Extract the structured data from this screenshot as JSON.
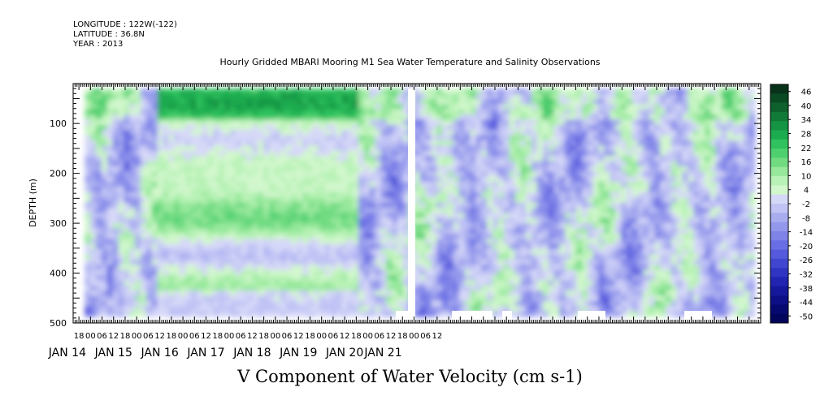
{
  "header": {
    "longitude": "LONGITUDE : 122W(-122)",
    "latitude": "LATITUDE : 36.8N",
    "year": "YEAR : 2013"
  },
  "chart_data": {
    "type": "heatmap",
    "title": "Hourly Gridded MBARI Mooring M1 Sea Water Temperature and Salinity Observations",
    "xlabel": "V Component of Water Velocity (cm s-1)",
    "ylabel": "DEPTH (m)",
    "y_range": [
      20,
      500
    ],
    "y_inverted": true,
    "y_ticks": [
      100,
      200,
      300,
      400,
      500
    ],
    "x_range_hours": [
      -9,
      348
    ],
    "x_tick_labels": [
      "18",
      "00",
      "06",
      "12",
      "18",
      "00",
      "06",
      "12",
      "18",
      "00",
      "06",
      "12",
      "18",
      "00",
      "06",
      "12",
      "18",
      "00",
      "06",
      "12",
      "18",
      "00",
      "06",
      "12",
      "18",
      "00",
      "06",
      "12",
      "18",
      "00",
      "06",
      "12"
    ],
    "x_tick_hours": [
      -6,
      0,
      6,
      12,
      18,
      24,
      30,
      36,
      42,
      48,
      54,
      60,
      66,
      72,
      78,
      84,
      90,
      96,
      102,
      108,
      114,
      120,
      126,
      132,
      138,
      144,
      150,
      156,
      162,
      168,
      174,
      180
    ],
    "date_labels": [
      "JAN 14",
      "JAN 15",
      "JAN 16",
      "JAN 17",
      "JAN 18",
      "JAN 19",
      "JAN 20",
      "JAN 21"
    ],
    "colorbar": {
      "labels": [
        "46",
        "40",
        "34",
        "28",
        "22",
        "16",
        "10",
        "4",
        "-2",
        "-8",
        "-14",
        "-20",
        "-26",
        "-32",
        "-38",
        "-44",
        "-50"
      ],
      "colors": [
        "#08331a",
        "#0a4a23",
        "#0e612d",
        "#117a38",
        "#159443",
        "#1cab4f",
        "#2fc25e",
        "#4fd06f",
        "#71db82",
        "#97e89c",
        "#b8f2b6",
        "#d2f7cd",
        "#d6d8f8",
        "#c0c3f4",
        "#a9adf0",
        "#9498ec",
        "#7f83e8",
        "#6a6ee4",
        "#5559dc",
        "#4146d1",
        "#2f34c2",
        "#2024b0",
        "#15189b",
        "#0c0f85",
        "#060970",
        "#03055c"
      ]
    }
  }
}
